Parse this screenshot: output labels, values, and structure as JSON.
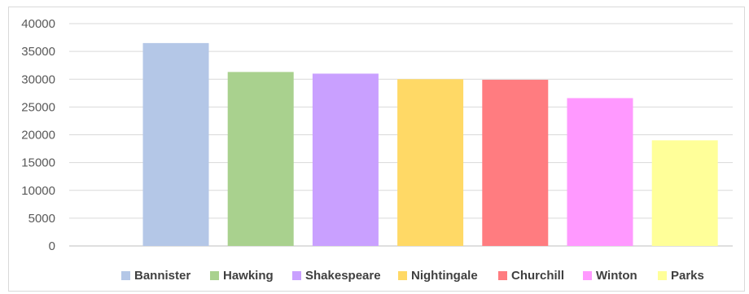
{
  "chart_data": {
    "type": "bar",
    "categories": [
      "Bannister",
      "Hawking",
      "Shakespeare",
      "Nightingale",
      "Churchill",
      "Winton",
      "Parks"
    ],
    "values": [
      36500,
      31300,
      31000,
      30000,
      29900,
      26600,
      19000
    ],
    "colors": [
      "#b4c7e7",
      "#a9d18e",
      "#c9a0ff",
      "#ffd966",
      "#ff7c80",
      "#ff99ff",
      "#ffff99"
    ],
    "ylim": [
      0,
      40000
    ],
    "yticks": [
      "0",
      "5000",
      "10000",
      "15000",
      "20000",
      "25000",
      "30000",
      "35000",
      "40000"
    ],
    "grid": true,
    "legend_position": "bottom",
    "legend": [
      "Bannister",
      "Hawking",
      "Shakespeare",
      "Nightingale",
      "Churchill",
      "Winton",
      "Parks"
    ]
  }
}
